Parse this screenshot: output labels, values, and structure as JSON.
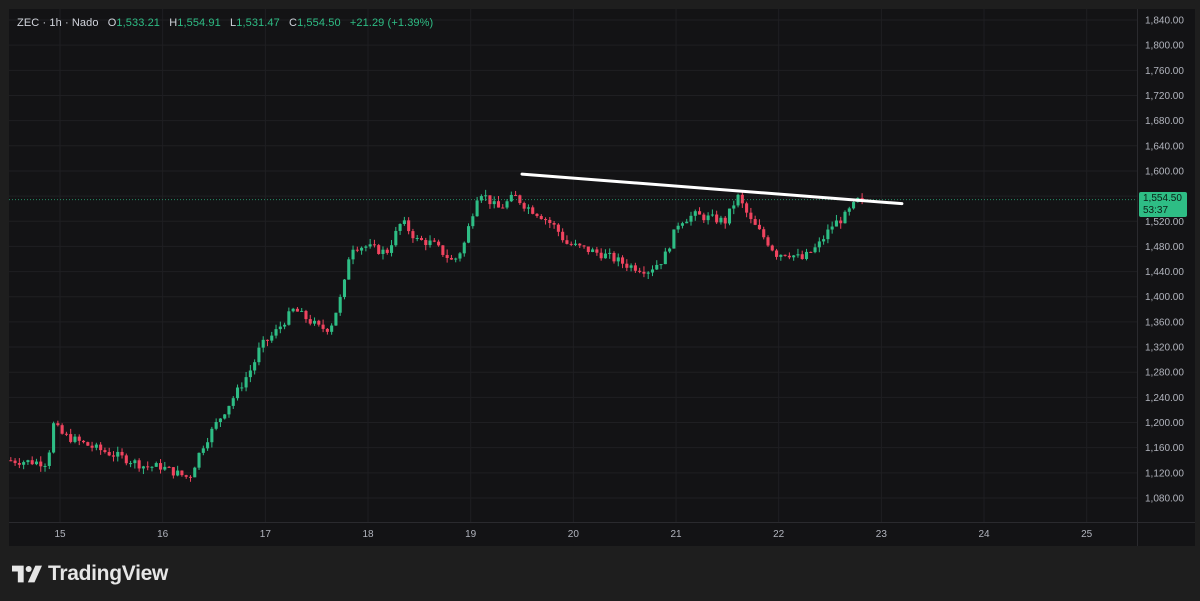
{
  "legend": {
    "symbol": "ZEC · 1h · Nado",
    "open_label": "O",
    "open": "1,533.21",
    "high_label": "H",
    "high": "1,554.91",
    "low_label": "L",
    "low": "1,531.47",
    "close_label": "C",
    "close": "1,554.50",
    "change": "+21.29 (+1.39%)"
  },
  "price_tag": {
    "price": "1,554.50",
    "countdown": "53:37"
  },
  "brand": {
    "name": "TradingView"
  },
  "colors": {
    "up": "#2ebd85",
    "down": "#f0445f",
    "background": "#131315",
    "grid": "#1f1f22",
    "trendline": "#ffffff"
  },
  "chart_data": {
    "type": "candlestick",
    "interval": "1h",
    "y_ticks": [
      "1,080.00",
      "1,120.00",
      "1,160.00",
      "1,200.00",
      "1,240.00",
      "1,280.00",
      "1,320.00",
      "1,360.00",
      "1,400.00",
      "1,440.00",
      "1,480.00",
      "1,520.00",
      "1,560.00",
      "1,600.00",
      "1,640.00",
      "1,680.00",
      "1,720.00",
      "1,760.00",
      "1,800.00",
      "1,840.00"
    ],
    "x_ticks": [
      "15",
      "16",
      "17",
      "18",
      "19",
      "20",
      "21",
      "22",
      "23",
      "24",
      "25"
    ],
    "ylim": [
      1040,
      1850
    ],
    "xlim_days": [
      14.5,
      25.55
    ],
    "last_close": 1554.5,
    "anchors": [
      [
        14.5,
        1140
      ],
      [
        14.9,
        1136
      ],
      [
        14.95,
        1198
      ],
      [
        15.05,
        1180
      ],
      [
        15.35,
        1160
      ],
      [
        15.7,
        1140
      ],
      [
        15.85,
        1130
      ],
      [
        16.0,
        1130
      ],
      [
        16.15,
        1120
      ],
      [
        16.28,
        1112
      ],
      [
        16.4,
        1160
      ],
      [
        16.55,
        1200
      ],
      [
        16.75,
        1250
      ],
      [
        16.9,
        1290
      ],
      [
        16.97,
        1320
      ],
      [
        17.1,
        1340
      ],
      [
        17.3,
        1380
      ],
      [
        17.55,
        1350
      ],
      [
        17.65,
        1350
      ],
      [
        17.78,
        1410
      ],
      [
        17.85,
        1480
      ],
      [
        18.0,
        1480
      ],
      [
        18.2,
        1470
      ],
      [
        18.35,
        1520
      ],
      [
        18.5,
        1490
      ],
      [
        18.65,
        1485
      ],
      [
        18.85,
        1455
      ],
      [
        18.95,
        1480
      ],
      [
        19.1,
        1570
      ],
      [
        19.25,
        1545
      ],
      [
        19.3,
        1540
      ],
      [
        19.45,
        1560
      ],
      [
        19.55,
        1545
      ],
      [
        19.7,
        1530
      ],
      [
        19.85,
        1510
      ],
      [
        19.95,
        1485
      ],
      [
        20.15,
        1475
      ],
      [
        20.35,
        1465
      ],
      [
        20.55,
        1450
      ],
      [
        20.75,
        1442
      ],
      [
        20.9,
        1460
      ],
      [
        21.0,
        1500
      ],
      [
        21.05,
        1520
      ],
      [
        21.2,
        1530
      ],
      [
        21.35,
        1525
      ],
      [
        21.5,
        1520
      ],
      [
        21.62,
        1560
      ],
      [
        21.75,
        1520
      ],
      [
        21.9,
        1490
      ],
      [
        22.0,
        1468
      ],
      [
        22.1,
        1470
      ],
      [
        22.25,
        1460
      ],
      [
        22.4,
        1480
      ],
      [
        22.55,
        1515
      ],
      [
        22.65,
        1525
      ],
      [
        22.8,
        1554.5
      ]
    ],
    "trendline": {
      "from": [
        19.5,
        1595
      ],
      "to": [
        23.2,
        1548
      ]
    }
  }
}
